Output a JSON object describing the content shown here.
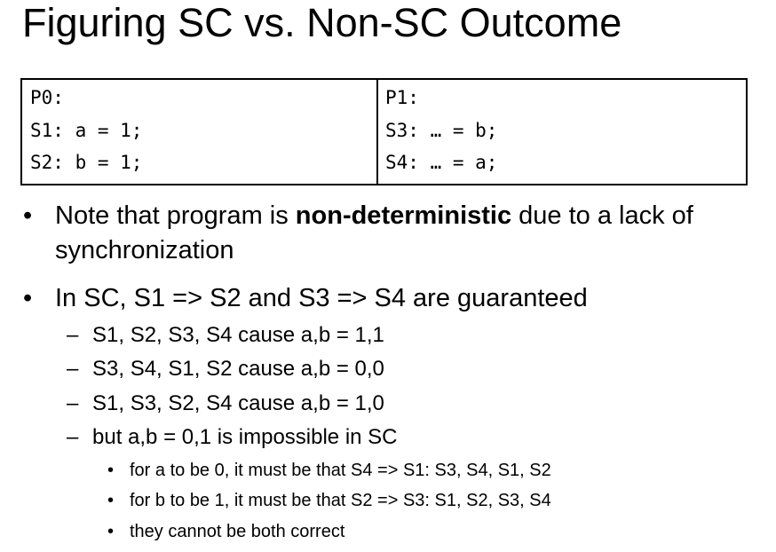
{
  "title": "Figuring SC vs. Non-SC Outcome",
  "table": {
    "columns": [
      [
        "P0:",
        "S1: a = 1;",
        "S2: b = 1;"
      ],
      [
        "P1:",
        "S3: … = b;",
        "S4: … = a;"
      ]
    ]
  },
  "bullets": [
    {
      "parts": [
        "Note that program is ",
        "non-deterministic",
        " due to a lack of",
        "synchronization"
      ]
    },
    {
      "text": "In SC, S1 => S2 and S3 => S4 are guaranteed",
      "items": [
        {
          "text": "S1, S2, S3, S4 cause a,b = 1,1"
        },
        {
          "text": "S3, S4, S1, S2 cause a,b = 0,0"
        },
        {
          "text": "S1, S3, S2, S4 cause a,b = 1,0"
        },
        {
          "text": "but a,b = 0,1 is impossible in SC",
          "items": [
            "for a to be 0, it must be that S4 => S1: S3, S4, S1, S2",
            "for b to be 1, it must be that S2 => S3: S1, S2, S3, S4",
            "they cannot be both correct"
          ]
        }
      ]
    }
  ]
}
